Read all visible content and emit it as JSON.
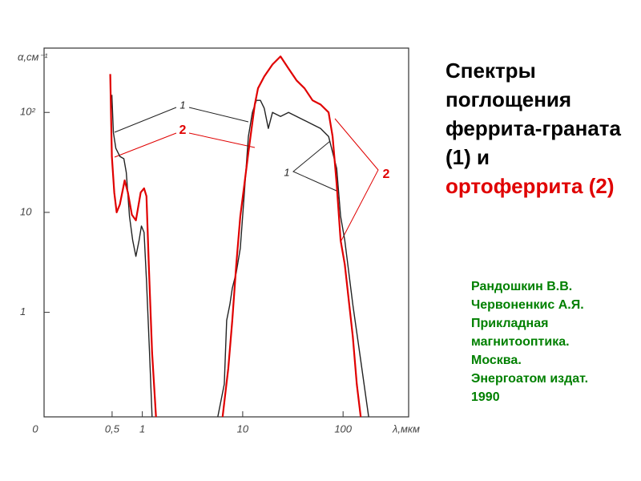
{
  "chart_data": {
    "type": "line",
    "title": [
      {
        "text": "Спектры поглощения феррита-граната (1) и",
        "color": "#000000"
      },
      {
        "text": "ортоферрита (2)",
        "color": "#e00000"
      }
    ],
    "reference": [
      "Рандошкин В.В.",
      "Червоненкис А.Я.",
      "Прикладная",
      "магнитооптика.",
      "Москва.",
      "Энергоатом издат.",
      "1990"
    ],
    "reference_color": "#008000",
    "x_label": "λ,мкм",
    "y_label": "α,см⁻¹",
    "origin_label": "0",
    "x_log": true,
    "y_log": true,
    "xlim": [
      0.105,
      450
    ],
    "ylim": [
      0.09,
      440
    ],
    "xticks": [
      {
        "value": 0.5,
        "label": "0,5"
      },
      1,
      10,
      100
    ],
    "yticks": [
      1,
      10,
      {
        "value": 100,
        "label": "10²"
      }
    ],
    "series": [
      {
        "color": "#222222",
        "x": [
          0.497,
          0.515,
          0.545,
          0.597,
          0.655,
          0.692,
          0.745,
          0.802,
          0.863,
          0.929,
          0.98,
          1.04,
          1.1,
          1.18,
          1.25,
          null,
          5.65,
          6.55,
          6.92,
          7.45,
          7.87,
          8.63,
          9.46,
          10.4,
          11.4,
          12.5,
          13.7,
          15.0,
          16.4,
          18.0,
          19.8,
          23.8,
          28.6,
          34.4,
          41.3,
          49.7,
          59.7,
          71.8,
          86.3,
          94.6,
          104,
          125,
          150,
          180
        ],
        "values": [
          150,
          63.1,
          43.7,
          36.3,
          34.4,
          25.1,
          9.12,
          5.25,
          3.63,
          5.25,
          7.31,
          6.31,
          2.09,
          0.398,
          0.09,
          null,
          0.09,
          0.191,
          0.832,
          1.2,
          1.74,
          2.51,
          4.37,
          15.8,
          57.5,
          100,
          132,
          132,
          110,
          69.2,
          100,
          91.2,
          100,
          91.2,
          83.2,
          75.9,
          69.2,
          57.5,
          27.5,
          9.12,
          5.25,
          1.2,
          0.331,
          0.09
        ]
      },
      {
        "color": "#e00000",
        "x": [
          0.479,
          0.497,
          0.525,
          0.555,
          0.597,
          0.667,
          0.718,
          0.787,
          0.863,
          0.964,
          1.04,
          1.1,
          1.16,
          1.25,
          1.37,
          null,
          6.31,
          7.18,
          7.87,
          8.63,
          9.46,
          10.4,
          11.4,
          13.2,
          14.2,
          16.4,
          19.8,
          23.8,
          28.6,
          34.4,
          41.3,
          49.7,
          59.7,
          71.8,
          78.7,
          86.3,
          94.6,
          104,
          125,
          137,
          150
        ],
        "values": [
          242,
          36.3,
          15.8,
          10,
          12.0,
          20.9,
          15.8,
          9.46,
          8.32,
          15.8,
          17.4,
          14.5,
          3.02,
          0.398,
          0.09,
          null,
          0.09,
          0.275,
          0.832,
          3.02,
          9.12,
          19.1,
          39.8,
          120,
          174,
          229,
          302,
          363,
          275,
          209,
          174,
          132,
          120,
          100,
          57.5,
          19.1,
          5.25,
          3.02,
          0.575,
          0.191,
          0.09
        ]
      }
    ],
    "annotations": [
      {
        "text": "1",
        "color": "#222222"
      },
      {
        "text": "2",
        "color": "#e00000"
      },
      {
        "text": "1",
        "color": "#222222"
      },
      {
        "text": "2",
        "color": "#e00000"
      }
    ]
  }
}
